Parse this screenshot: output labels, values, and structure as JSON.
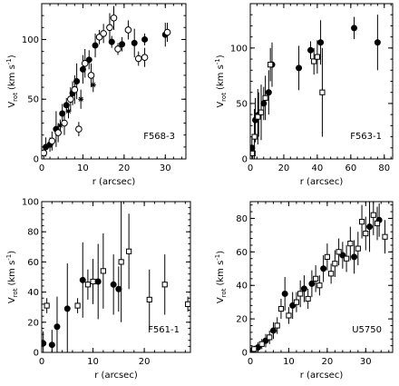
{
  "chart_data": [
    {
      "type": "scatter",
      "panel_label": "F568-3",
      "xlabel": "r (arcsec)",
      "ylabel_main": "V",
      "ylabel_sub": "rot",
      "ylabel_unit": "(km s",
      "ylabel_exp": "-1",
      "ylabel_close": ")",
      "xlim": [
        0,
        35
      ],
      "ylim": [
        0,
        130
      ],
      "xticks": [
        0,
        10,
        20,
        30
      ],
      "yticks": [
        0,
        50,
        100
      ],
      "series": [
        {
          "marker": "circle-filled",
          "points": [
            {
              "x": 1.0,
              "y": 10,
              "err": 8
            },
            {
              "x": 2.0,
              "y": 12,
              "err": 6
            },
            {
              "x": 3.5,
              "y": 25,
              "err": 15
            },
            {
              "x": 5.0,
              "y": 38,
              "err": 8
            },
            {
              "x": 6.0,
              "y": 45,
              "err": 6
            },
            {
              "x": 7.5,
              "y": 55,
              "err": 10
            },
            {
              "x": 8.5,
              "y": 65,
              "err": 15
            },
            {
              "x": 10.0,
              "y": 75,
              "err": 12
            },
            {
              "x": 11.5,
              "y": 83,
              "err": 8
            },
            {
              "x": 13.0,
              "y": 95,
              "err": 10
            },
            {
              "x": 17.0,
              "y": 98,
              "err": 5
            },
            {
              "x": 19.5,
              "y": 96,
              "err": 6
            },
            {
              "x": 22.5,
              "y": 97,
              "err": 12
            },
            {
              "x": 25.0,
              "y": 100,
              "err": 5
            },
            {
              "x": 30.0,
              "y": 104,
              "err": 10
            }
          ]
        },
        {
          "marker": "circle-open",
          "points": [
            {
              "x": 0.5,
              "y": 5,
              "err": 5
            },
            {
              "x": 2.5,
              "y": 15,
              "err": 8
            },
            {
              "x": 4.0,
              "y": 22,
              "err": 8
            },
            {
              "x": 5.5,
              "y": 30,
              "err": 10
            },
            {
              "x": 7.0,
              "y": 50,
              "err": 10
            },
            {
              "x": 8.0,
              "y": 58,
              "err": 12
            },
            {
              "x": 9.0,
              "y": 25,
              "err": 6
            },
            {
              "x": 10.5,
              "y": 80,
              "err": 12
            },
            {
              "x": 12.0,
              "y": 70,
              "err": 10
            },
            {
              "x": 14.0,
              "y": 102,
              "err": 6
            },
            {
              "x": 15.0,
              "y": 105,
              "err": 8
            },
            {
              "x": 16.5,
              "y": 110,
              "err": 12
            },
            {
              "x": 17.5,
              "y": 118,
              "err": 10
            },
            {
              "x": 18.5,
              "y": 92,
              "err": 5
            },
            {
              "x": 21.0,
              "y": 108,
              "err": 8
            },
            {
              "x": 23.5,
              "y": 84,
              "err": 6
            },
            {
              "x": 25.0,
              "y": 85,
              "err": 8
            },
            {
              "x": 30.5,
              "y": 106,
              "err": 8
            }
          ]
        },
        {
          "marker": "star",
          "points": [
            {
              "x": 4.5,
              "y": 28,
              "err": 5
            },
            {
              "x": 6.5,
              "y": 40,
              "err": 6
            },
            {
              "x": 9.5,
              "y": 50,
              "err": 8
            },
            {
              "x": 12.5,
              "y": 62,
              "err": 6
            }
          ]
        }
      ]
    },
    {
      "type": "scatter",
      "panel_label": "F563-1",
      "xlabel": "r (arcsec)",
      "ylabel_main": "V",
      "ylabel_sub": "rot",
      "ylabel_unit": "(km s",
      "ylabel_exp": "-1",
      "ylabel_close": ")",
      "xlim": [
        0,
        85
      ],
      "ylim": [
        0,
        140
      ],
      "xticks": [
        0,
        20,
        40,
        60,
        80
      ],
      "yticks": [
        0,
        50,
        100
      ],
      "series": [
        {
          "marker": "circle-filled",
          "points": [
            {
              "x": 1.0,
              "y": 10,
              "err": 10
            },
            {
              "x": 3.0,
              "y": 35,
              "err": 20
            },
            {
              "x": 5.0,
              "y": 40,
              "err": 20
            },
            {
              "x": 8.0,
              "y": 50,
              "err": 15
            },
            {
              "x": 11.0,
              "y": 60,
              "err": 20
            },
            {
              "x": 13.0,
              "y": 85,
              "err": 20
            },
            {
              "x": 29.0,
              "y": 82,
              "err": 20
            },
            {
              "x": 36.0,
              "y": 98,
              "err": 8
            },
            {
              "x": 42.0,
              "y": 105,
              "err": 20
            },
            {
              "x": 62.0,
              "y": 118,
              "err": 10
            },
            {
              "x": 76.0,
              "y": 105,
              "err": 25
            }
          ]
        },
        {
          "marker": "square-open",
          "points": [
            {
              "x": 1.5,
              "y": 5,
              "err": 5
            },
            {
              "x": 2.5,
              "y": 20,
              "err": 25
            },
            {
              "x": 4.5,
              "y": 38,
              "err": 25
            },
            {
              "x": 6.5,
              "y": 42,
              "err": 25
            },
            {
              "x": 9.0,
              "y": 55,
              "err": 20
            },
            {
              "x": 12.0,
              "y": 85,
              "err": 15
            },
            {
              "x": 38.0,
              "y": 88,
              "err": 12
            },
            {
              "x": 40.0,
              "y": 92,
              "err": 15
            },
            {
              "x": 43.0,
              "y": 60,
              "err": 40
            }
          ]
        }
      ]
    },
    {
      "type": "scatter",
      "panel_label": "F561-1",
      "xlabel": "r (arcsec)",
      "ylabel_main": "V",
      "ylabel_sub": "rot",
      "ylabel_unit": "(km s",
      "ylabel_exp": "-1",
      "ylabel_close": ")",
      "xlim": [
        0,
        29
      ],
      "ylim": [
        0,
        100
      ],
      "xticks": [
        0,
        10,
        20
      ],
      "yticks": [
        0,
        20,
        40,
        60,
        80,
        100
      ],
      "series": [
        {
          "marker": "circle-filled",
          "points": [
            {
              "x": 0.3,
              "y": 6,
              "err": 8
            },
            {
              "x": 2.0,
              "y": 5,
              "err": 10
            },
            {
              "x": 3.0,
              "y": 17,
              "err": 20
            },
            {
              "x": 5.0,
              "y": 29,
              "err": 30
            },
            {
              "x": 8.0,
              "y": 48,
              "err": 25
            },
            {
              "x": 11.0,
              "y": 47,
              "err": 25
            },
            {
              "x": 14.0,
              "y": 45,
              "err": 20
            },
            {
              "x": 15.0,
              "y": 42,
              "err": 15
            }
          ]
        },
        {
          "marker": "square-open",
          "points": [
            {
              "x": 1.0,
              "y": 31,
              "err": 5
            },
            {
              "x": 7.0,
              "y": 31,
              "err": 5
            },
            {
              "x": 9.0,
              "y": 45,
              "err": 10
            },
            {
              "x": 10.0,
              "y": 47,
              "err": 15
            },
            {
              "x": 12.0,
              "y": 54,
              "err": 25
            },
            {
              "x": 15.5,
              "y": 60,
              "err": 40
            },
            {
              "x": 17.0,
              "y": 67,
              "err": 25
            },
            {
              "x": 21.0,
              "y": 35,
              "err": 20
            },
            {
              "x": 24.0,
              "y": 45,
              "err": 20
            },
            {
              "x": 28.5,
              "y": 32,
              "err": 5
            }
          ]
        }
      ]
    },
    {
      "type": "scatter",
      "panel_label": "U5750",
      "xlabel": "r (arcsec)",
      "ylabel_main": "V",
      "ylabel_sub": "rot",
      "ylabel_unit": "(km s",
      "ylabel_exp": "-1",
      "ylabel_close": ")",
      "xlim": [
        0,
        37
      ],
      "ylim": [
        0,
        90
      ],
      "xticks": [
        0,
        10,
        20,
        30
      ],
      "yticks": [
        0,
        20,
        40,
        60,
        80
      ],
      "series": [
        {
          "marker": "circle-filled",
          "points": [
            {
              "x": 0.5,
              "y": 1,
              "err": 2
            },
            {
              "x": 2.0,
              "y": 3,
              "err": 3
            },
            {
              "x": 4.0,
              "y": 7,
              "err": 4
            },
            {
              "x": 6.0,
              "y": 13,
              "err": 5
            },
            {
              "x": 9.0,
              "y": 35,
              "err": 10
            },
            {
              "x": 11.0,
              "y": 28,
              "err": 8
            },
            {
              "x": 14.0,
              "y": 38,
              "err": 8
            },
            {
              "x": 16.0,
              "y": 41,
              "err": 8
            },
            {
              "x": 19.0,
              "y": 50,
              "err": 8
            },
            {
              "x": 24.0,
              "y": 58,
              "err": 8
            },
            {
              "x": 27.0,
              "y": 57,
              "err": 10
            },
            {
              "x": 31.0,
              "y": 75,
              "err": 15
            },
            {
              "x": 33.5,
              "y": 79,
              "err": 10
            }
          ]
        },
        {
          "marker": "square-open",
          "points": [
            {
              "x": 1.0,
              "y": 2,
              "err": 2
            },
            {
              "x": 3.0,
              "y": 5,
              "err": 3
            },
            {
              "x": 5.0,
              "y": 9,
              "err": 4
            },
            {
              "x": 7.0,
              "y": 16,
              "err": 5
            },
            {
              "x": 8.0,
              "y": 26,
              "err": 6
            },
            {
              "x": 10.0,
              "y": 22,
              "err": 5
            },
            {
              "x": 12.0,
              "y": 30,
              "err": 6
            },
            {
              "x": 13.0,
              "y": 35,
              "err": 8
            },
            {
              "x": 15.0,
              "y": 32,
              "err": 6
            },
            {
              "x": 17.0,
              "y": 44,
              "err": 8
            },
            {
              "x": 18.0,
              "y": 40,
              "err": 6
            },
            {
              "x": 20.0,
              "y": 57,
              "err": 8
            },
            {
              "x": 21.0,
              "y": 47,
              "err": 6
            },
            {
              "x": 22.0,
              "y": 53,
              "err": 8
            },
            {
              "x": 23.0,
              "y": 60,
              "err": 8
            },
            {
              "x": 25.0,
              "y": 56,
              "err": 8
            },
            {
              "x": 26.0,
              "y": 65,
              "err": 10
            },
            {
              "x": 28.0,
              "y": 62,
              "err": 10
            },
            {
              "x": 29.0,
              "y": 78,
              "err": 10
            },
            {
              "x": 30.0,
              "y": 71,
              "err": 10
            },
            {
              "x": 32.0,
              "y": 82,
              "err": 12
            },
            {
              "x": 33.0,
              "y": 77,
              "err": 10
            },
            {
              "x": 35.0,
              "y": 69,
              "err": 10
            }
          ]
        }
      ]
    }
  ]
}
